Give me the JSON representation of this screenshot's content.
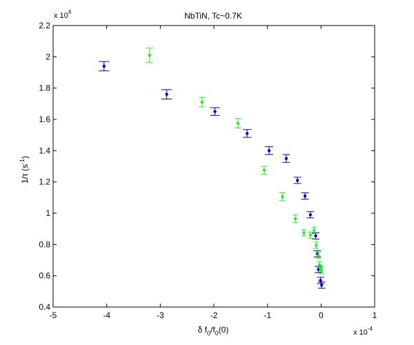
{
  "chart_data": {
    "type": "scatter",
    "title": "NbTiN, Tc~0.7K",
    "xlabel": {
      "pre": "δ f",
      "sub1": "0",
      "mid": "/f",
      "sub2": "0",
      "post": "(0)"
    },
    "ylabel": {
      "pre": "1/τ (s",
      "sup": "-1",
      "post": ")"
    },
    "x_multiplier": {
      "base": "x 10",
      "exp": "-4"
    },
    "y_multiplier": {
      "base": "x 10",
      "exp": "4"
    },
    "xlim": [
      -5,
      1
    ],
    "ylim": [
      0.4,
      2.2
    ],
    "xticks": [
      -5,
      -4,
      -3,
      -2,
      -1,
      0,
      1
    ],
    "xtick_labels": [
      "-5",
      "-4",
      "-3",
      "-2",
      "-1",
      "0",
      "1"
    ],
    "yticks": [
      0.4,
      0.6,
      0.8,
      1.0,
      1.2,
      1.4,
      1.6,
      1.8,
      2.0,
      2.2
    ],
    "ytick_labels": [
      "0.4",
      "0.6",
      "0.8",
      "1",
      "1.2",
      "1.4",
      "1.6",
      "1.8",
      "2",
      "2.2"
    ],
    "grid": false,
    "series": [
      {
        "color": "#0000b0",
        "points": [
          {
            "x": -4.05,
            "y": 1.94,
            "yerr": 0.03,
            "xerr": 0.1
          },
          {
            "x": -2.88,
            "y": 1.76,
            "yerr": 0.03,
            "xerr": 0.1
          },
          {
            "x": -1.98,
            "y": 1.65,
            "yerr": 0.025,
            "xerr": 0.09
          },
          {
            "x": -1.38,
            "y": 1.51,
            "yerr": 0.025,
            "xerr": 0.08
          },
          {
            "x": -0.97,
            "y": 1.4,
            "yerr": 0.025,
            "xerr": 0.08
          },
          {
            "x": -0.65,
            "y": 1.35,
            "yerr": 0.025,
            "xerr": 0.07
          },
          {
            "x": -0.44,
            "y": 1.21,
            "yerr": 0.02,
            "xerr": 0.07
          },
          {
            "x": -0.3,
            "y": 1.11,
            "yerr": 0.02,
            "xerr": 0.07
          },
          {
            "x": -0.2,
            "y": 0.99,
            "yerr": 0.02,
            "xerr": 0.07
          },
          {
            "x": -0.1,
            "y": 0.855,
            "yerr": 0.02,
            "xerr": 0.07
          },
          {
            "x": -0.07,
            "y": 0.74,
            "yerr": 0.02,
            "xerr": 0.07
          },
          {
            "x": -0.05,
            "y": 0.64,
            "yerr": 0.02,
            "xerr": 0.07
          },
          {
            "x": -0.01,
            "y": 0.57,
            "yerr": 0.02,
            "xerr": 0.07
          },
          {
            "x": 0.01,
            "y": 0.54,
            "yerr": 0.02,
            "xerr": 0.07
          }
        ]
      },
      {
        "color": "#22ee22",
        "points": [
          {
            "x": -3.2,
            "y": 2.01,
            "yerr": 0.045,
            "xerr": 0.07
          },
          {
            "x": -2.22,
            "y": 1.71,
            "yerr": 0.03,
            "xerr": 0.06
          },
          {
            "x": -1.55,
            "y": 1.575,
            "yerr": 0.03,
            "xerr": 0.06
          },
          {
            "x": -1.06,
            "y": 1.275,
            "yerr": 0.025,
            "xerr": 0.06
          },
          {
            "x": -0.72,
            "y": 1.105,
            "yerr": 0.025,
            "xerr": 0.06
          },
          {
            "x": -0.48,
            "y": 0.965,
            "yerr": 0.025,
            "xerr": 0.05
          },
          {
            "x": -0.32,
            "y": 0.875,
            "yerr": 0.02,
            "xerr": 0.05
          },
          {
            "x": -0.2,
            "y": 0.86,
            "yerr": 0.02,
            "xerr": 0.05
          },
          {
            "x": -0.13,
            "y": 0.89,
            "yerr": 0.02,
            "xerr": 0.05
          },
          {
            "x": -0.09,
            "y": 0.795,
            "yerr": 0.02,
            "xerr": 0.05
          },
          {
            "x": -0.05,
            "y": 0.73,
            "yerr": 0.02,
            "xerr": 0.05
          },
          {
            "x": -0.03,
            "y": 0.67,
            "yerr": 0.02,
            "xerr": 0.05
          },
          {
            "x": -0.01,
            "y": 0.645,
            "yerr": 0.02,
            "xerr": 0.05
          },
          {
            "x": 0.01,
            "y": 0.635,
            "yerr": 0.02,
            "xerr": 0.05
          }
        ]
      }
    ]
  }
}
